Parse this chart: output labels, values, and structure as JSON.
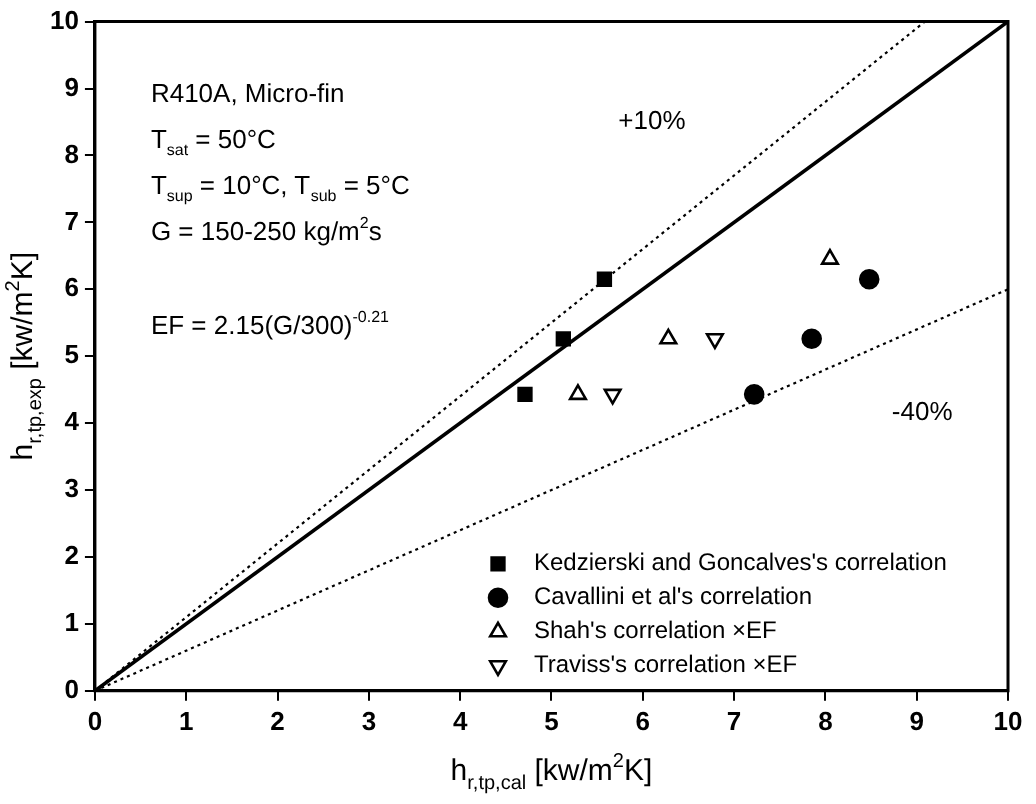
{
  "chart_data": {
    "type": "scatter",
    "xlabel": "h$_{r,tp,cal}$ [kw/m$^{2}$K]",
    "ylabel": "h$_{r,tp,exp}$ [kw/m$^{2}$K]",
    "xlim": [
      0,
      10
    ],
    "ylim": [
      0,
      10
    ],
    "xticks": [
      0,
      1,
      2,
      3,
      4,
      5,
      6,
      7,
      8,
      9,
      10
    ],
    "yticks": [
      0,
      1,
      2,
      3,
      4,
      5,
      6,
      7,
      8,
      9,
      10
    ],
    "grid": false,
    "legend": "bottom right",
    "annotations": [
      "R410A, Micro-fin",
      "T$_{sat}$ = 50°C",
      "T$_{sup}$ = 10°C, T$_{sub}$ = 5°C",
      "G = 150-250 kg/m$^{2}$s",
      "EF = 2.15(G/300)$^{-0.21}$",
      "+10%",
      "-40%"
    ],
    "series": [
      {
        "name": "Kedzierski and Goncalves's correlation",
        "color": "#000000",
        "marker": "square",
        "x": [
          5.58,
          5.13,
          4.71
        ],
        "values": [
          6.15,
          5.26,
          4.43
        ]
      },
      {
        "name": "Cavallini et al's correlation",
        "color": "#000000",
        "marker": "circle",
        "x": [
          8.48,
          7.85,
          7.22
        ],
        "values": [
          6.15,
          5.26,
          4.43
        ]
      },
      {
        "name": "Shah's correlation ×EF",
        "color": "#000000",
        "marker": "triangle",
        "x": [
          8.05,
          6.28,
          5.29
        ],
        "values": [
          6.45,
          5.26,
          4.43
        ]
      },
      {
        "name": "Traviss's correlation ×EF",
        "color": "#000000",
        "marker": "triangle-down",
        "x": [
          6.79,
          5.67
        ],
        "values": [
          5.26,
          4.43
        ]
      },
      {
        "type": "line",
        "color": "#000000",
        "line_style": "solid",
        "marker": "none",
        "x": [
          0,
          10
        ],
        "values": [
          0,
          10
        ]
      },
      {
        "type": "line",
        "color": "#000000",
        "line_style": "dotted",
        "marker": "none",
        "x": [
          0,
          9.09
        ],
        "values": [
          0,
          10
        ]
      },
      {
        "type": "line",
        "color": "#000000",
        "line_style": "dotted",
        "marker": "none",
        "x": [
          0,
          10
        ],
        "values": [
          0,
          6
        ]
      }
    ]
  }
}
